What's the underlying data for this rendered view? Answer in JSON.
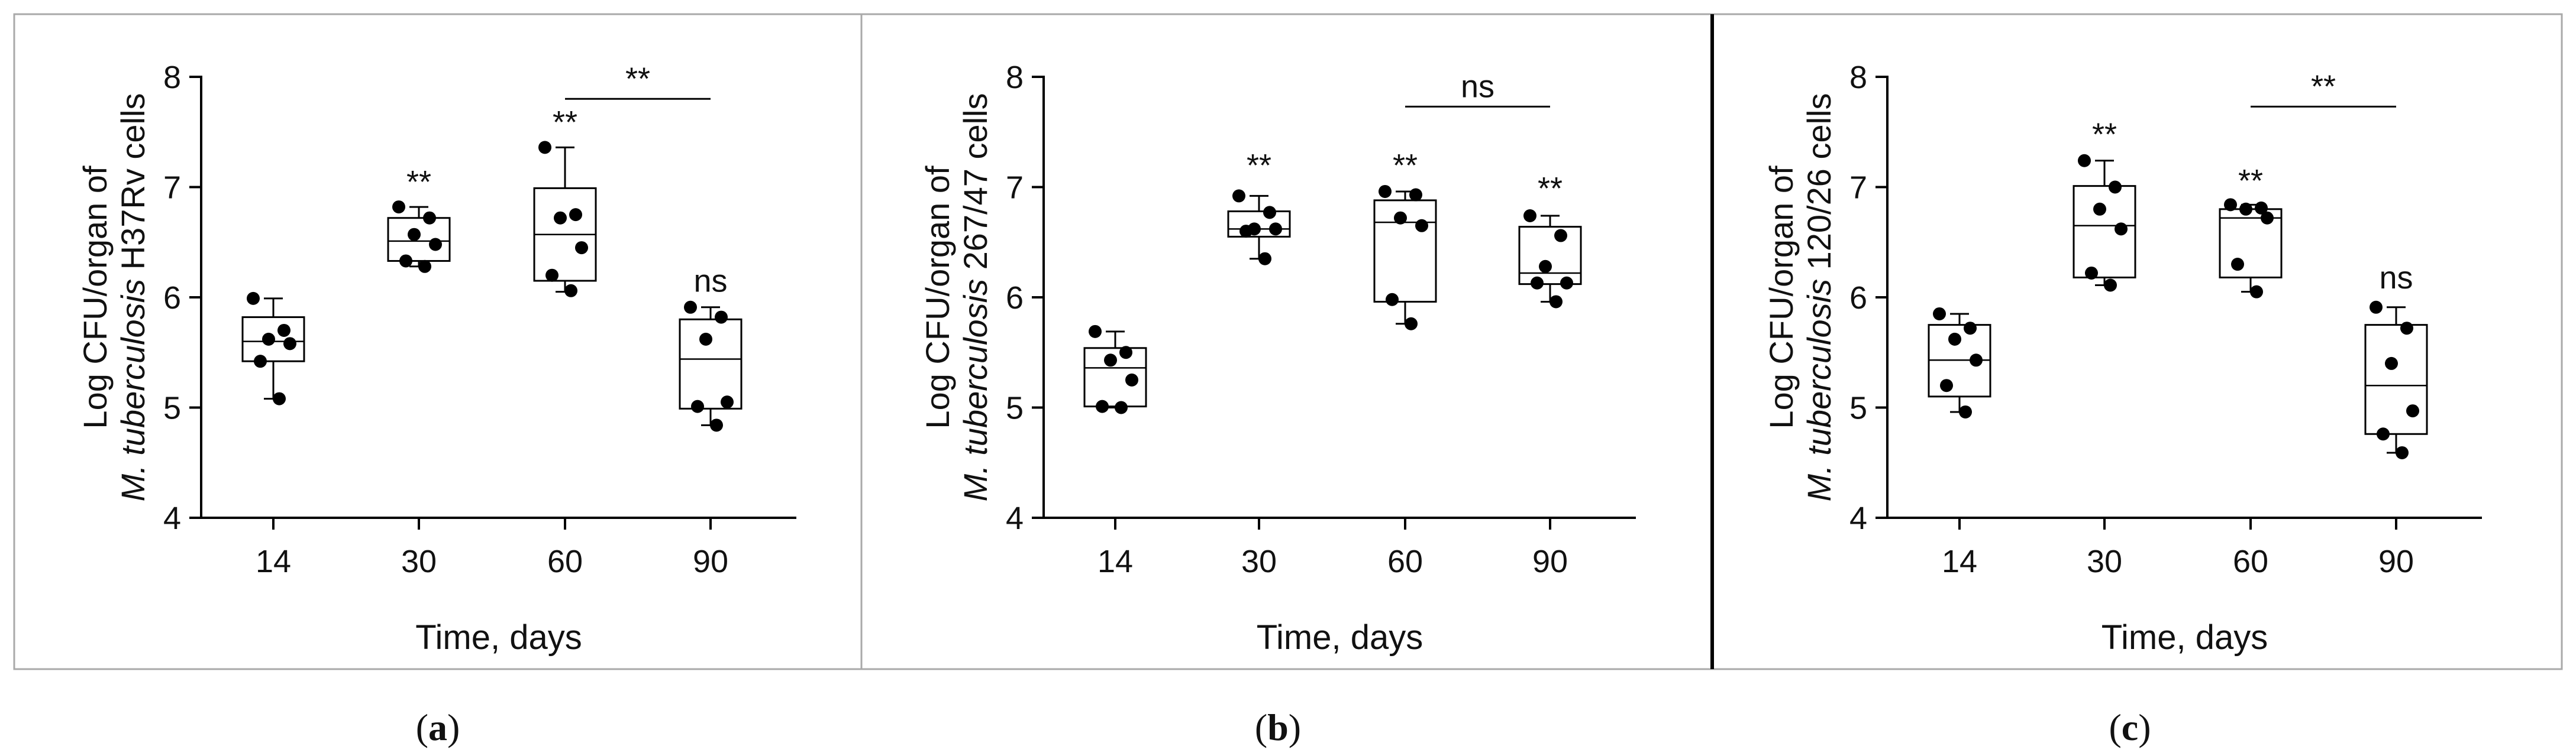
{
  "figure": {
    "caption_open": "(",
    "caption_close": ")",
    "panel_border_color": "#a9a9a9",
    "divider_color": "#000000"
  },
  "chart_data": [
    {
      "type": "box",
      "panel_label": "a",
      "ylabel_line1": "Log CFU/organ of",
      "ylabel_species": "M. tuberculosis",
      "ylabel_strain": " H37Rv cells",
      "xlabel": "Time, days",
      "categories": [
        "14",
        "30",
        "60",
        "90"
      ],
      "ylim": [
        4,
        8
      ],
      "yticks": [
        "4",
        "5",
        "6",
        "7",
        "8"
      ],
      "boxes": [
        {
          "category": "14",
          "min": 5.08,
          "q1": 5.42,
          "median": 5.6,
          "q3": 5.82,
          "max": 5.99
        },
        {
          "category": "30",
          "min": 6.28,
          "q1": 6.33,
          "median": 6.51,
          "q3": 6.72,
          "max": 6.82
        },
        {
          "category": "60",
          "min": 6.05,
          "q1": 6.15,
          "median": 6.57,
          "q3": 6.99,
          "max": 7.36
        },
        {
          "category": "90",
          "min": 4.84,
          "q1": 4.99,
          "median": 5.44,
          "q3": 5.8,
          "max": 5.91
        }
      ],
      "points": [
        [
          5.99,
          5.7,
          5.62,
          5.58,
          5.42,
          5.08
        ],
        [
          6.82,
          6.72,
          6.57,
          6.48,
          6.33,
          6.28
        ],
        [
          7.36,
          6.75,
          6.72,
          6.45,
          6.2,
          6.06
        ],
        [
          5.91,
          5.82,
          5.62,
          5.05,
          5.01,
          4.84
        ]
      ],
      "annotations": [
        {
          "category": "30",
          "text": "**",
          "y": 6.95
        },
        {
          "category": "60",
          "text": "**",
          "y": 7.49
        },
        {
          "category": "90",
          "text": "ns",
          "y": 6.05
        }
      ],
      "brackets": [
        {
          "from": "60",
          "to": "90",
          "text": "**",
          "y": 7.8
        }
      ]
    },
    {
      "type": "box",
      "panel_label": "b",
      "ylabel_line1": "Log CFU/organ of",
      "ylabel_species": "M. tuberculosis",
      "ylabel_strain": " 267/47 cells",
      "xlabel": "Time, days",
      "categories": [
        "14",
        "30",
        "60",
        "90"
      ],
      "ylim": [
        4,
        8
      ],
      "yticks": [
        "4",
        "5",
        "6",
        "7",
        "8"
      ],
      "boxes": [
        {
          "category": "14",
          "min": 5.0,
          "q1": 5.01,
          "median": 5.36,
          "q3": 5.54,
          "max": 5.69
        },
        {
          "category": "30",
          "min": 6.35,
          "q1": 6.55,
          "median": 6.62,
          "q3": 6.78,
          "max": 6.92
        },
        {
          "category": "60",
          "min": 5.76,
          "q1": 5.96,
          "median": 6.68,
          "q3": 6.88,
          "max": 6.96
        },
        {
          "category": "90",
          "min": 5.96,
          "q1": 6.12,
          "median": 6.22,
          "q3": 6.64,
          "max": 6.74
        }
      ],
      "points": [
        [
          5.69,
          5.5,
          5.43,
          5.25,
          5.01,
          5.0
        ],
        [
          6.92,
          6.77,
          6.62,
          6.62,
          6.6,
          6.35
        ],
        [
          6.96,
          6.93,
          6.72,
          6.65,
          5.98,
          5.76
        ],
        [
          6.74,
          6.56,
          6.28,
          6.13,
          6.13,
          5.96
        ]
      ],
      "annotations": [
        {
          "category": "30",
          "text": "**",
          "y": 7.1
        },
        {
          "category": "60",
          "text": "**",
          "y": 7.1
        },
        {
          "category": "90",
          "text": "**",
          "y": 6.89
        }
      ],
      "brackets": [
        {
          "from": "60",
          "to": "90",
          "text": "ns",
          "y": 7.73
        }
      ]
    },
    {
      "type": "box",
      "panel_label": "c",
      "ylabel_line1": "Log CFU/organ of",
      "ylabel_species": "M. tuberculosis",
      "ylabel_strain": " 120/26 cells",
      "xlabel": "Time, days",
      "categories": [
        "14",
        "30",
        "60",
        "90"
      ],
      "ylim": [
        4,
        8
      ],
      "yticks": [
        "4",
        "5",
        "6",
        "7",
        "8"
      ],
      "boxes": [
        {
          "category": "14",
          "min": 4.96,
          "q1": 5.1,
          "median": 5.43,
          "q3": 5.75,
          "max": 5.85
        },
        {
          "category": "30",
          "min": 6.11,
          "q1": 6.18,
          "median": 6.65,
          "q3": 7.01,
          "max": 7.24
        },
        {
          "category": "60",
          "min": 6.05,
          "q1": 6.18,
          "median": 6.72,
          "q3": 6.8,
          "max": 6.84
        },
        {
          "category": "90",
          "min": 4.59,
          "q1": 4.76,
          "median": 5.2,
          "q3": 5.75,
          "max": 5.91
        }
      ],
      "points": [
        [
          5.85,
          5.72,
          5.62,
          5.43,
          5.2,
          4.96
        ],
        [
          7.24,
          7.0,
          6.8,
          6.62,
          6.22,
          6.11
        ],
        [
          6.84,
          6.81,
          6.8,
          6.72,
          6.3,
          6.05
        ],
        [
          5.91,
          5.72,
          5.4,
          4.97,
          4.76,
          4.59
        ]
      ],
      "annotations": [
        {
          "category": "30",
          "text": "**",
          "y": 7.38
        },
        {
          "category": "60",
          "text": "**",
          "y": 6.96
        },
        {
          "category": "90",
          "text": "ns",
          "y": 6.08
        }
      ],
      "brackets": [
        {
          "from": "60",
          "to": "90",
          "text": "**",
          "y": 7.73
        }
      ]
    }
  ]
}
